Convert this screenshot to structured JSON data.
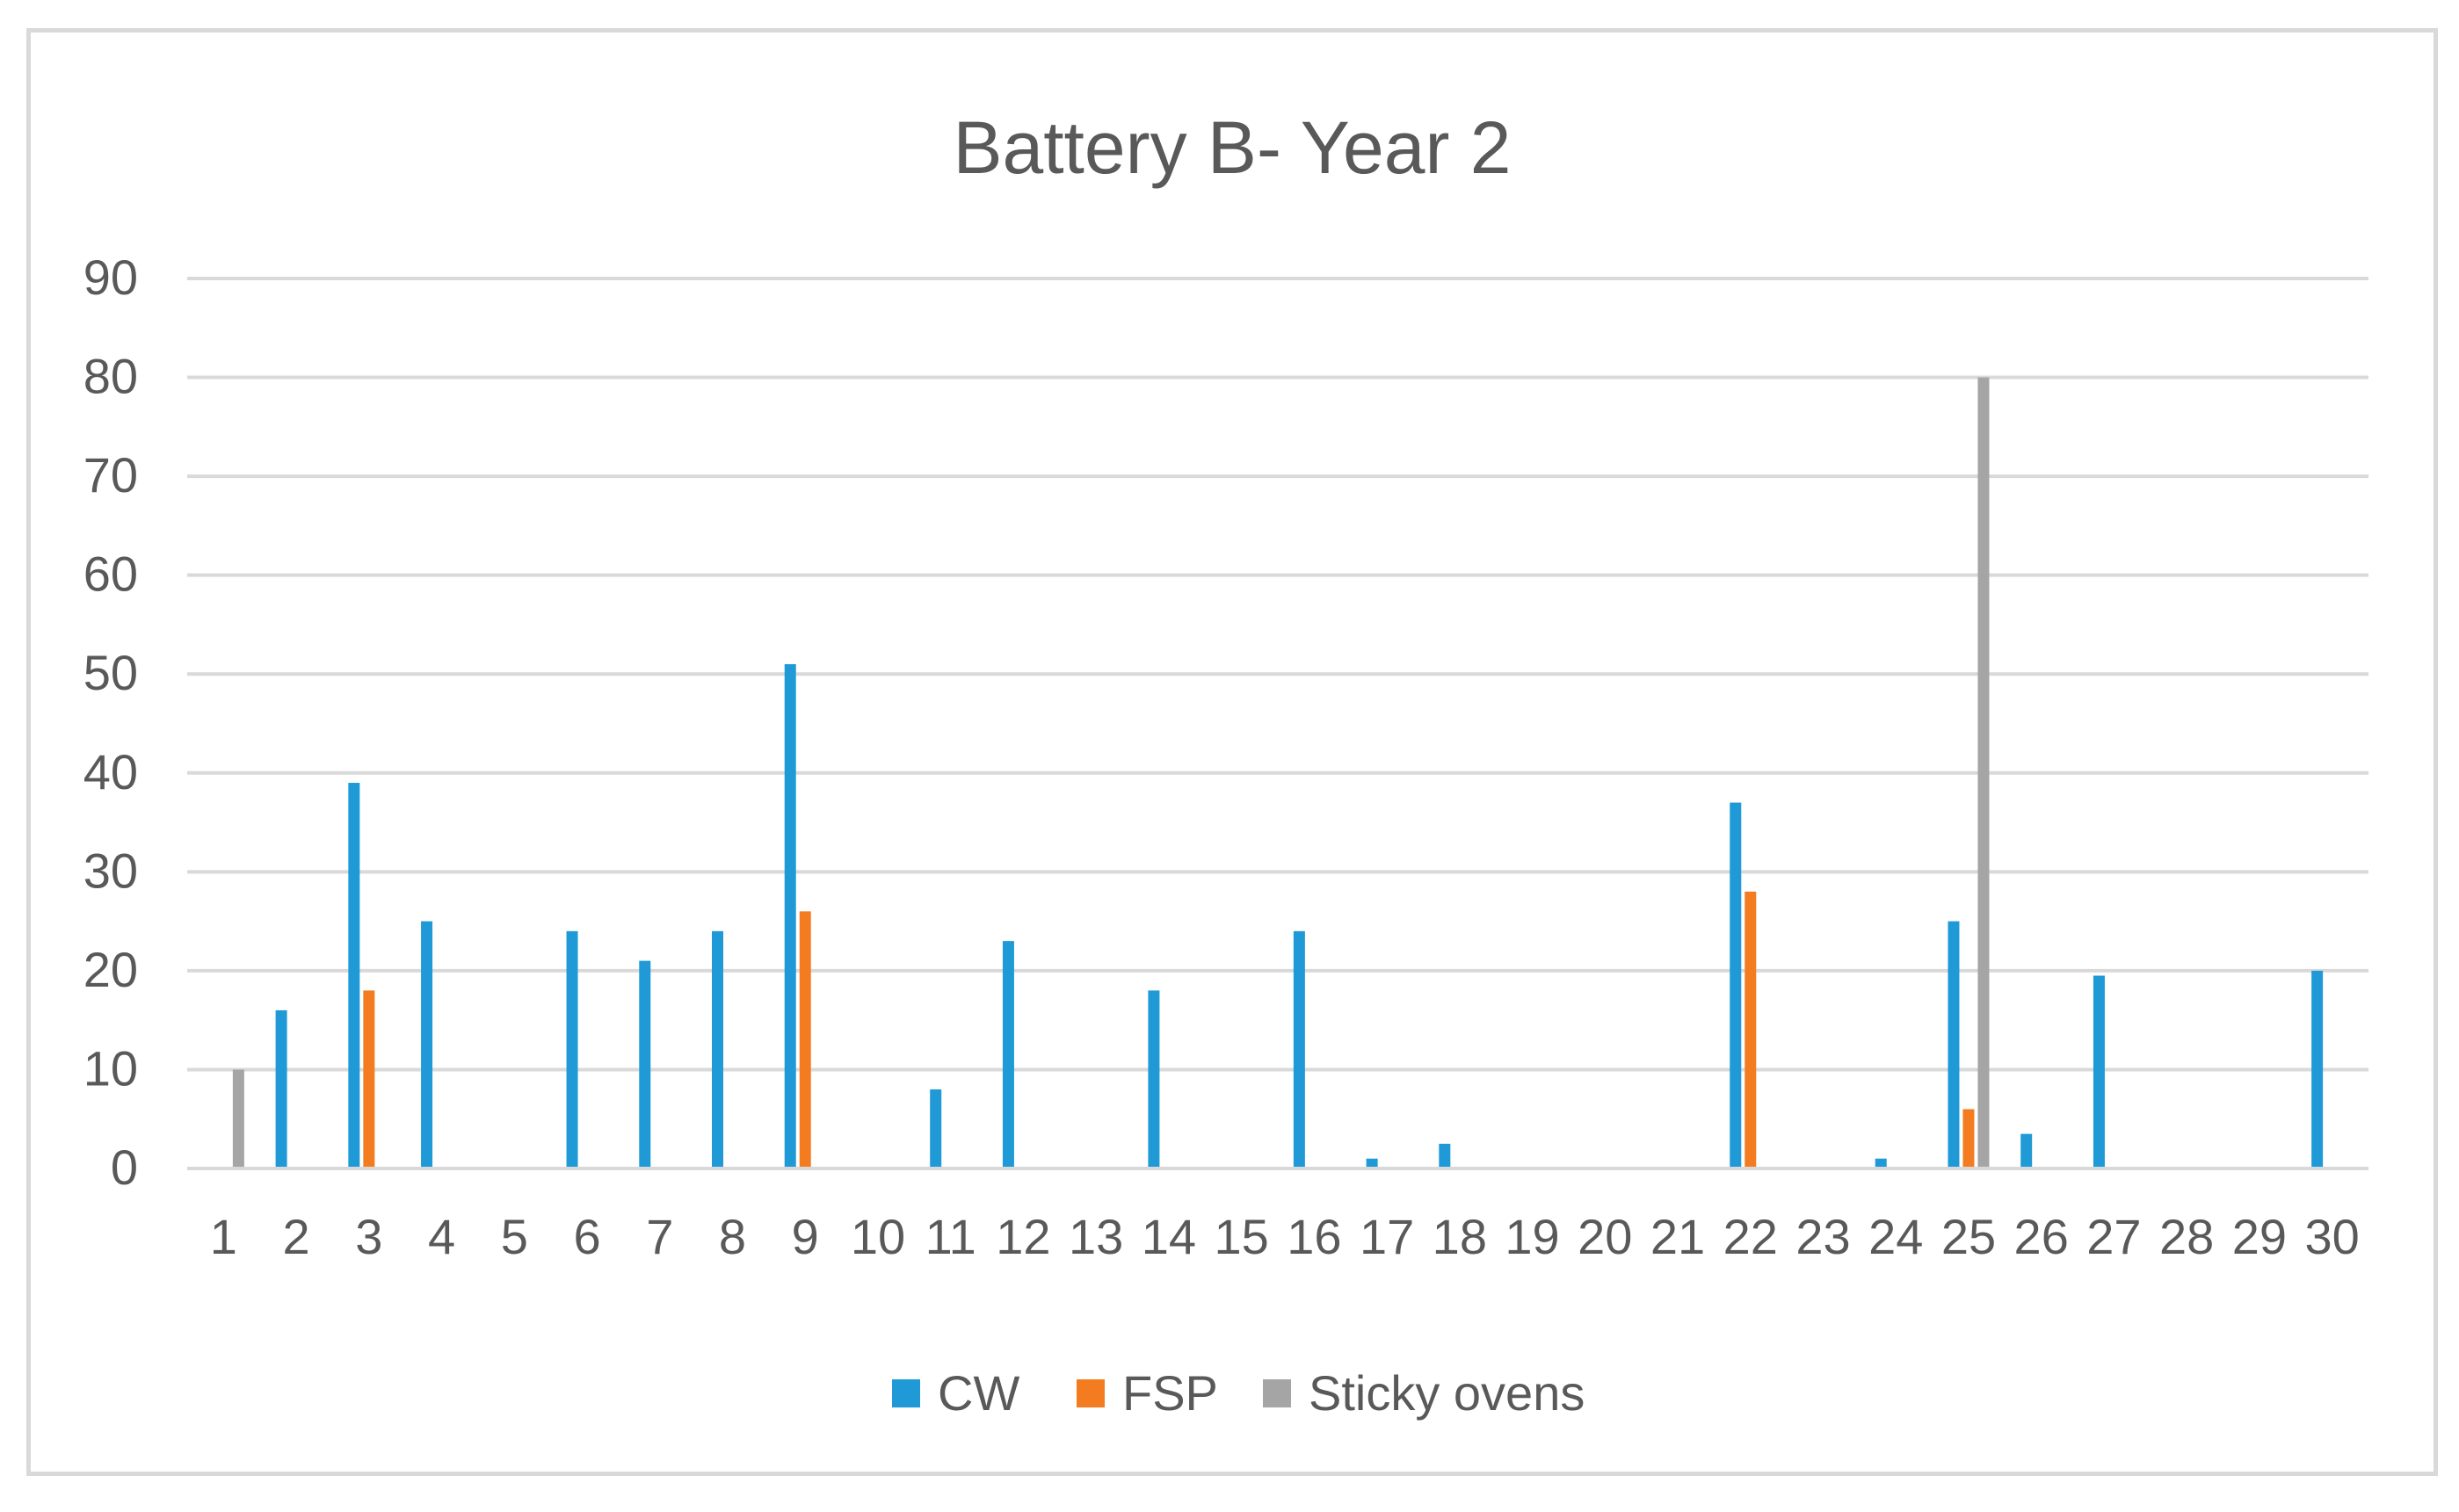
{
  "chart_data": {
    "type": "bar",
    "title": "Battery B- Year 2",
    "xlabel": "",
    "ylabel": "",
    "ylim": [
      0,
      90
    ],
    "yticks": [
      0,
      10,
      20,
      30,
      40,
      50,
      60,
      70,
      80,
      90
    ],
    "grid": true,
    "legend_position": "bottom",
    "categories": [
      "1",
      "2",
      "3",
      "4",
      "5",
      "6",
      "7",
      "8",
      "9",
      "10",
      "11",
      "12",
      "13",
      "14",
      "15",
      "16",
      "17",
      "18",
      "19",
      "20",
      "21",
      "22",
      "23",
      "24",
      "25",
      "26",
      "27",
      "28",
      "29",
      "30"
    ],
    "series": [
      {
        "name": "CW",
        "color": "#1f9ad6",
        "values": [
          0,
          16,
          39,
          25,
          0,
          24,
          21,
          24,
          51,
          0,
          8,
          23,
          0,
          18,
          0,
          24,
          1,
          2.5,
          0,
          0,
          0,
          37,
          0,
          1,
          25,
          3.5,
          19.5,
          0,
          0,
          20
        ]
      },
      {
        "name": "FSP",
        "color": "#f47c20",
        "values": [
          0,
          0,
          18,
          0,
          0,
          0,
          0,
          0,
          26,
          0,
          0,
          0,
          0,
          0,
          0,
          0,
          0,
          0,
          0,
          0,
          0,
          28,
          0,
          0,
          6,
          0,
          0,
          0,
          0,
          0
        ]
      },
      {
        "name": "Sticky ovens",
        "color": "#a5a5a5",
        "values": [
          10,
          0,
          0,
          0,
          0,
          0,
          0,
          0,
          0,
          0,
          0,
          0,
          0,
          0,
          0,
          0,
          0,
          0,
          0,
          0,
          0,
          0,
          0,
          0,
          80,
          0,
          0,
          0,
          0,
          0
        ]
      }
    ]
  }
}
